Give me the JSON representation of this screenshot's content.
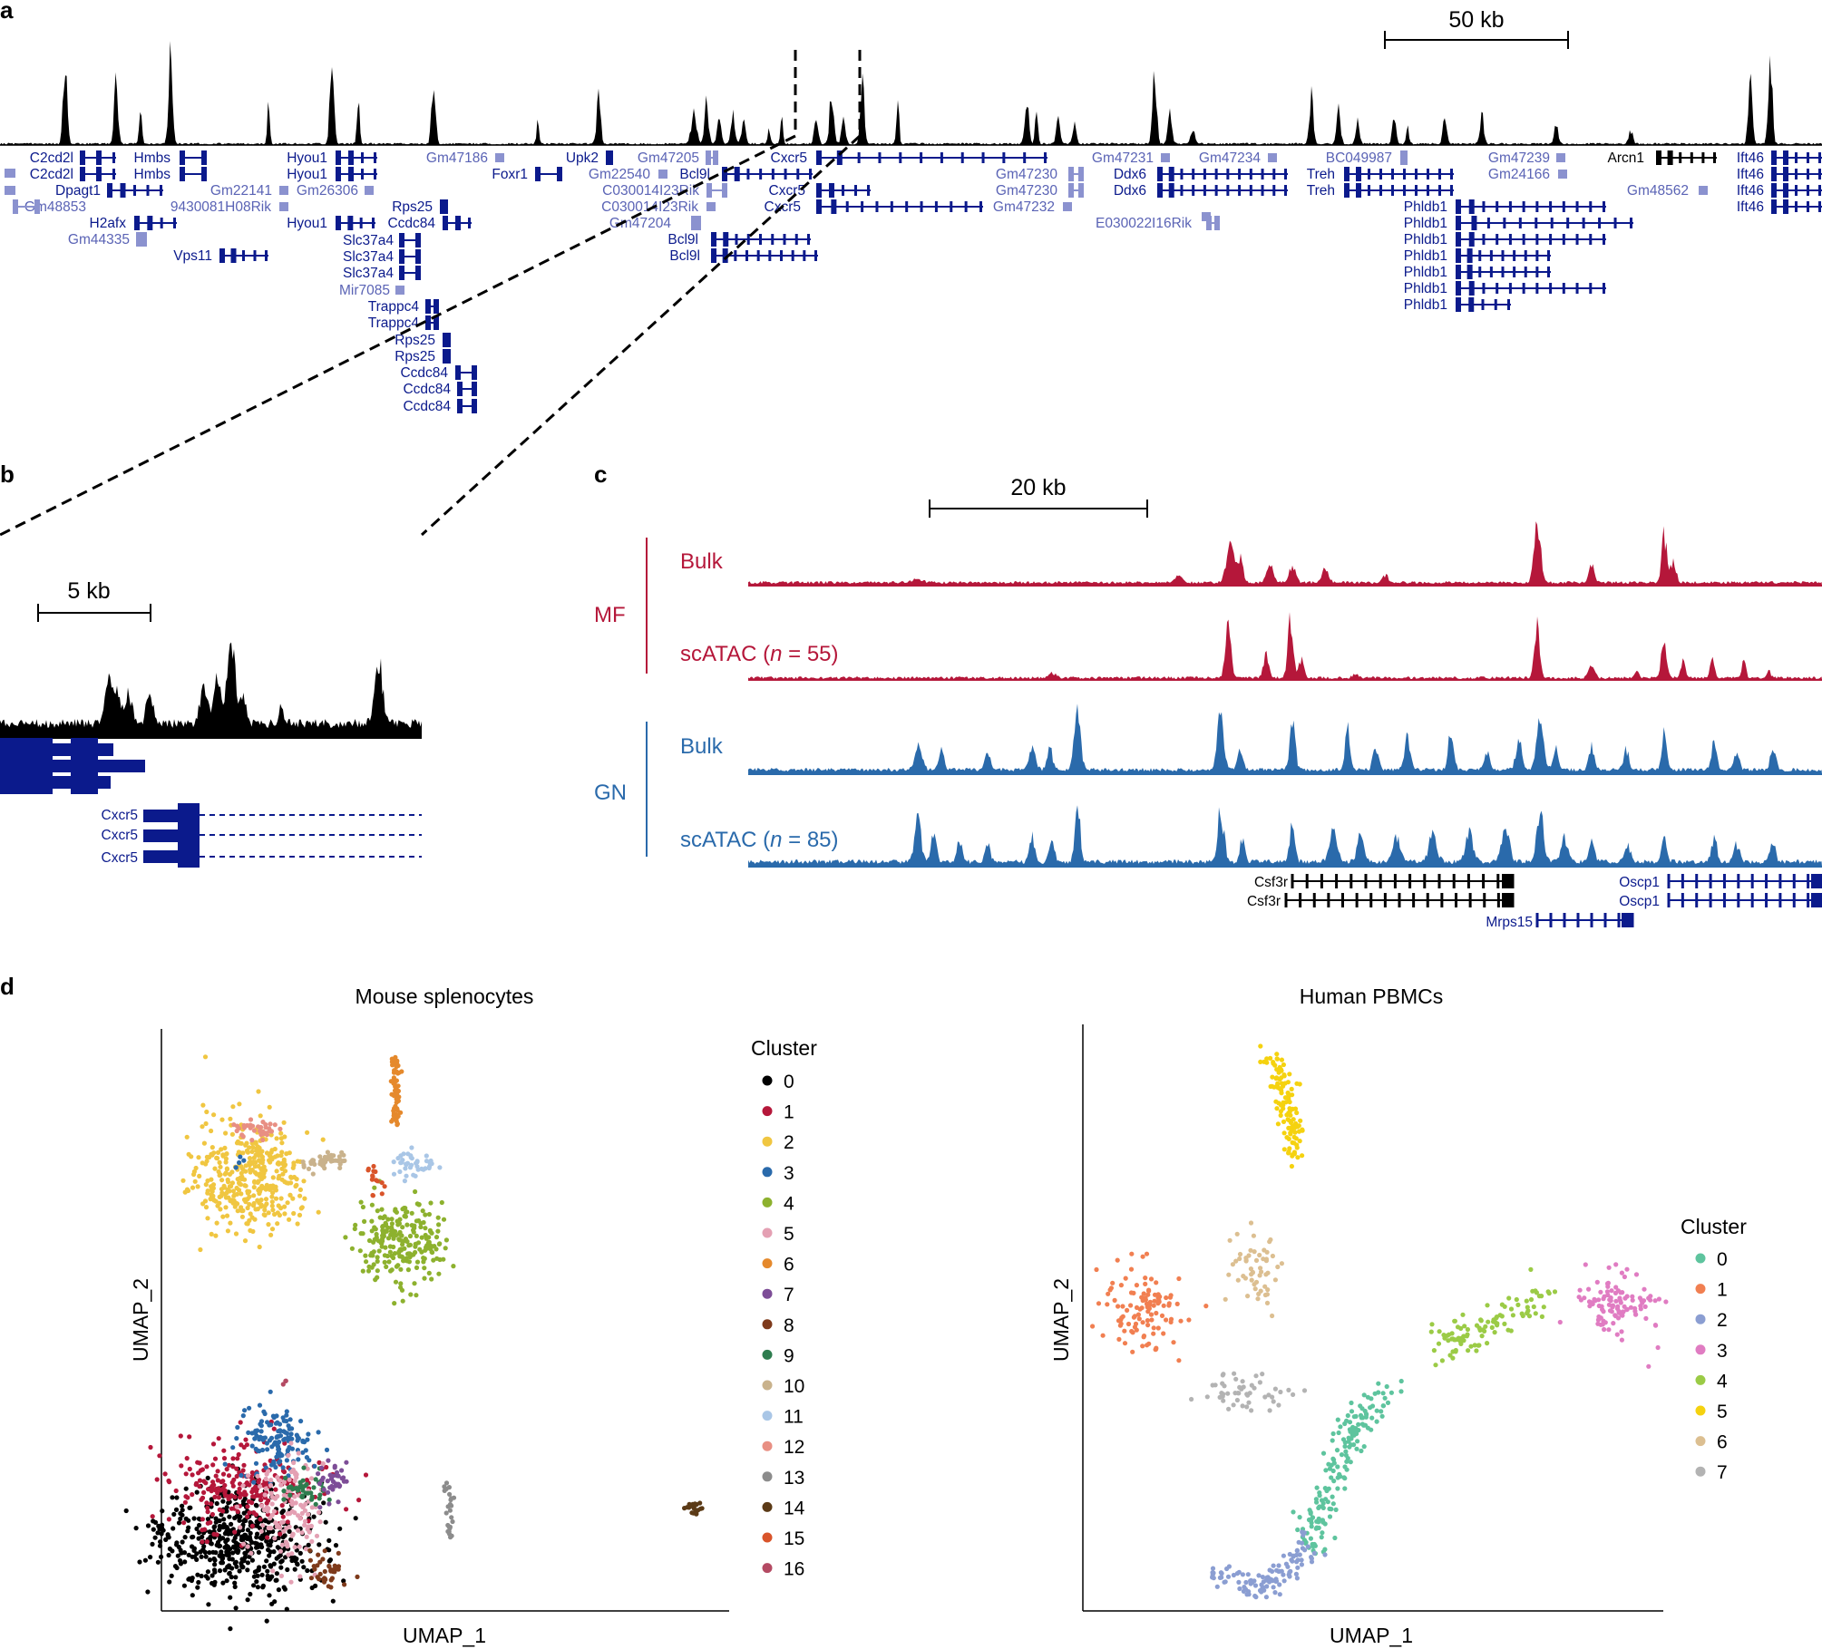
{
  "panels": {
    "a": "a",
    "b": "b",
    "c": "c",
    "d": "d"
  },
  "panel_a": {
    "scale_bar": "50 kb",
    "genes_row": [
      {
        "label": "C2cd2l",
        "style": "dark"
      },
      {
        "label": "C2cd2l",
        "style": "dark"
      },
      {
        "label": "Dpagt1",
        "style": "dark"
      },
      {
        "label": "Gm48853",
        "style": "light"
      },
      {
        "label": "H2afx",
        "style": "dark"
      },
      {
        "label": "Gm44335",
        "style": "light"
      },
      {
        "label": "Hmbs",
        "style": "dark"
      },
      {
        "label": "Hmbs",
        "style": "dark"
      },
      {
        "label": "Gm22141",
        "style": "light"
      },
      {
        "label": "9430081H08Rik",
        "style": "light"
      },
      {
        "label": "Vps11",
        "style": "dark"
      },
      {
        "label": "Hyou1",
        "style": "dark"
      },
      {
        "label": "Hyou1",
        "style": "dark"
      },
      {
        "label": "Gm26306",
        "style": "light"
      },
      {
        "label": "Hyou1",
        "style": "dark"
      },
      {
        "label": "Slc37a4",
        "style": "dark"
      },
      {
        "label": "Slc37a4",
        "style": "dark"
      },
      {
        "label": "Slc37a4",
        "style": "dark"
      },
      {
        "label": "Mir7085",
        "style": "light"
      },
      {
        "label": "Trappc4",
        "style": "dark"
      },
      {
        "label": "Trappc4",
        "style": "dark"
      },
      {
        "label": "Gm47186",
        "style": "light"
      },
      {
        "label": "Rps25",
        "style": "dark"
      },
      {
        "label": "Ccdc84",
        "style": "dark"
      },
      {
        "label": "Rps25",
        "style": "dark"
      },
      {
        "label": "Rps25",
        "style": "dark"
      },
      {
        "label": "Ccdc84",
        "style": "dark"
      },
      {
        "label": "Ccdc84",
        "style": "dark"
      },
      {
        "label": "Ccdc84",
        "style": "dark"
      },
      {
        "label": "Foxr1",
        "style": "dark"
      },
      {
        "label": "Upk2",
        "style": "dark"
      },
      {
        "label": "C030014I23Rik",
        "style": "light"
      },
      {
        "label": "C030014I23Rik",
        "style": "light"
      },
      {
        "label": "Gm47205",
        "style": "light"
      },
      {
        "label": "Gm22540",
        "style": "light"
      },
      {
        "label": "Gm47204",
        "style": "light"
      },
      {
        "label": "Bcl9l",
        "style": "dark"
      },
      {
        "label": "Bcl9l",
        "style": "dark"
      },
      {
        "label": "Bcl9l",
        "style": "dark"
      },
      {
        "label": "Cxcr5",
        "style": "dark"
      },
      {
        "label": "Cxcr5",
        "style": "dark"
      },
      {
        "label": "Cxcr5",
        "style": "dark"
      },
      {
        "label": "Gm47231",
        "style": "light"
      },
      {
        "label": "Gm47230",
        "style": "light"
      },
      {
        "label": "Gm47230",
        "style": "light"
      },
      {
        "label": "Gm47232",
        "style": "light"
      },
      {
        "label": "Gm47234",
        "style": "light"
      },
      {
        "label": "Ddx6",
        "style": "dark"
      },
      {
        "label": "Ddx6",
        "style": "dark"
      },
      {
        "label": "E030022I16Rik",
        "style": "light"
      },
      {
        "label": "BC049987",
        "style": "light"
      },
      {
        "label": "Treh",
        "style": "dark"
      },
      {
        "label": "Treh",
        "style": "dark"
      },
      {
        "label": "Gm47239",
        "style": "light"
      },
      {
        "label": "Gm24166",
        "style": "light"
      },
      {
        "label": "Gm48562",
        "style": "light"
      },
      {
        "label": "Phldb1",
        "style": "dark"
      },
      {
        "label": "Phldb1",
        "style": "dark"
      },
      {
        "label": "Phldb1",
        "style": "dark"
      },
      {
        "label": "Phldb1",
        "style": "dark"
      },
      {
        "label": "Phldb1",
        "style": "dark"
      },
      {
        "label": "Phldb1",
        "style": "dark"
      },
      {
        "label": "Phldb1",
        "style": "dark"
      },
      {
        "label": "Arcn1",
        "style": "black"
      },
      {
        "label": "Ift46",
        "style": "dark"
      },
      {
        "label": "Ift46",
        "style": "dark"
      },
      {
        "label": "Ift46",
        "style": "dark"
      },
      {
        "label": "Ift46",
        "style": "dark"
      }
    ]
  },
  "panel_b": {
    "scale_bar": "5 kb",
    "genes": [
      "Cxcr5",
      "Cxcr5",
      "Cxcr5"
    ]
  },
  "panel_c": {
    "scale_bar": "20 kb",
    "group_mf": "MF",
    "group_gn": "GN",
    "track_labels": [
      "Bulk",
      "scATAC (",
      "n",
      " = 55)",
      "Bulk",
      "scATAC (",
      "n",
      " = 85)"
    ],
    "genes": [
      "Csf3r",
      "Csf3r",
      "Mrps15",
      "Oscp1",
      "Oscp1"
    ],
    "colors": {
      "mf": "#b5173a",
      "gn": "#2a6aab"
    }
  },
  "panel_d": {
    "mouse": {
      "title": "Mouse splenocytes",
      "xlabel": "UMAP_1",
      "ylabel": "UMAP_2",
      "legend_title": "Cluster",
      "clusters": [
        {
          "label": "0",
          "color": "#000000"
        },
        {
          "label": "1",
          "color": "#b5173a"
        },
        {
          "label": "2",
          "color": "#f0c641"
        },
        {
          "label": "3",
          "color": "#2a6aab"
        },
        {
          "label": "4",
          "color": "#8db12e"
        },
        {
          "label": "5",
          "color": "#e4a0b3"
        },
        {
          "label": "6",
          "color": "#e5892c"
        },
        {
          "label": "7",
          "color": "#7d4d97"
        },
        {
          "label": "8",
          "color": "#7e3a1b"
        },
        {
          "label": "9",
          "color": "#2e7d4f"
        },
        {
          "label": "10",
          "color": "#c9b28c"
        },
        {
          "label": "11",
          "color": "#a9c6e6"
        },
        {
          "label": "12",
          "color": "#e88f83"
        },
        {
          "label": "13",
          "color": "#8c8c8c"
        },
        {
          "label": "14",
          "color": "#5b3a16"
        },
        {
          "label": "15",
          "color": "#d9542a"
        },
        {
          "label": "16",
          "color": "#b44a63"
        }
      ]
    },
    "human": {
      "title": "Human PBMCs",
      "xlabel": "UMAP_1",
      "ylabel": "UMAP_2",
      "legend_title": "Cluster",
      "clusters": [
        {
          "label": "0",
          "color": "#5ec49e"
        },
        {
          "label": "1",
          "color": "#f17f51"
        },
        {
          "label": "2",
          "color": "#8b9ed2"
        },
        {
          "label": "3",
          "color": "#e07cc2"
        },
        {
          "label": "4",
          "color": "#9bcb46"
        },
        {
          "label": "5",
          "color": "#f5d20f"
        },
        {
          "label": "6",
          "color": "#dcbf91"
        },
        {
          "label": "7",
          "color": "#b3b3b3"
        }
      ]
    }
  }
}
